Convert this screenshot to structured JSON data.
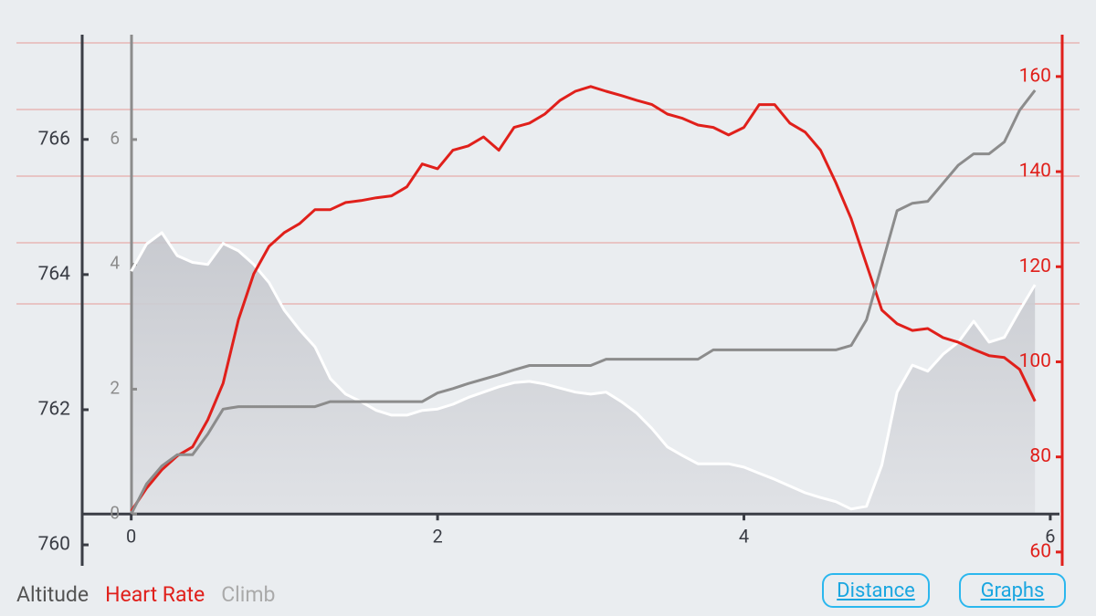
{
  "chart_data": {
    "type": "line",
    "x": [
      0,
      0.1,
      0.2,
      0.3,
      0.4,
      0.5,
      0.6,
      0.7,
      0.8,
      0.9,
      1,
      1.1,
      1.2,
      1.3,
      1.4,
      1.5,
      1.6,
      1.7,
      1.8,
      1.9,
      2,
      2.1,
      2.2,
      2.3,
      2.4,
      2.5,
      2.6,
      2.7,
      2.8,
      2.9,
      3,
      3.1,
      3.2,
      3.3,
      3.4,
      3.5,
      3.6,
      3.7,
      3.8,
      3.9,
      4,
      4.1,
      4.2,
      4.3,
      4.4,
      4.5,
      4.6,
      4.7,
      4.8,
      4.9,
      5,
      5.1,
      5.2,
      5.3,
      5.4,
      5.5,
      5.6,
      5.7,
      5.8,
      5.9
    ],
    "xlim": [
      -0.32,
      6.06
    ],
    "xticks": [
      0,
      2,
      4,
      6
    ],
    "ylim": [
      759.69,
      767.55
    ],
    "yticks": [
      760,
      762,
      764,
      766
    ],
    "y2lim": [
      57.1,
      168.8
    ],
    "y2ticks": [
      60,
      80,
      100,
      120,
      140,
      160
    ],
    "y3lim": [
      -0.83,
      7.68
    ],
    "y3ticks": [
      0,
      2,
      4,
      6
    ],
    "series": [
      {
        "name": "Altitude",
        "color": "#ffffff",
        "fill": "#c8cad0",
        "legend_color": "#555555",
        "values": [
          764.05,
          764.45,
          764.62,
          764.28,
          764.18,
          764.15,
          764.46,
          764.35,
          764.15,
          763.88,
          763.47,
          763.18,
          762.93,
          762.46,
          762.23,
          762.12,
          761.99,
          761.92,
          761.92,
          761.99,
          762.01,
          762.08,
          762.18,
          762.26,
          762.34,
          762.4,
          762.42,
          762.38,
          762.32,
          762.26,
          762.23,
          762.26,
          762.12,
          761.95,
          761.72,
          761.45,
          761.32,
          761.2,
          761.2,
          761.2,
          761.15,
          761.06,
          760.97,
          760.87,
          760.77,
          760.7,
          760.64,
          760.53,
          760.57,
          761.18,
          762.26,
          762.66,
          762.57,
          762.82,
          763.0,
          763.31,
          763.0,
          763.07,
          763.47,
          763.85
        ]
      },
      {
        "name": "Heart Rate",
        "color": "#e0201b",
        "legend_color": "#e0201b",
        "axis": "y2",
        "values": [
          68.6,
          73.4,
          77.3,
          80.2,
          82.1,
          87.8,
          95.5,
          108.9,
          118.5,
          124.3,
          127.2,
          129.1,
          132.0,
          132.0,
          133.5,
          133.9,
          134.5,
          134.9,
          136.8,
          141.6,
          140.6,
          144.5,
          145.4,
          147.3,
          144.5,
          149.3,
          150.2,
          152.1,
          155.0,
          156.9,
          157.9,
          156.9,
          156.0,
          155.0,
          154.1,
          152.1,
          151.2,
          149.8,
          149.3,
          147.7,
          149.3,
          154.1,
          154.1,
          150.2,
          148.3,
          144.5,
          137.7,
          130.1,
          120.5,
          110.9,
          108.0,
          106.6,
          107.0,
          105.1,
          104.1,
          102.6,
          101.3,
          100.9,
          98.4,
          91.7
        ]
      },
      {
        "name": "Climb",
        "color": "#8c8c8c",
        "legend_color": "#aaaaaa",
        "axis": "y3",
        "values": [
          0,
          0.48,
          0.77,
          0.95,
          0.95,
          1.28,
          1.68,
          1.72,
          1.72,
          1.72,
          1.72,
          1.72,
          1.72,
          1.8,
          1.8,
          1.8,
          1.8,
          1.8,
          1.8,
          1.8,
          1.94,
          2.01,
          2.09,
          2.16,
          2.23,
          2.31,
          2.38,
          2.38,
          2.38,
          2.38,
          2.38,
          2.48,
          2.48,
          2.48,
          2.48,
          2.48,
          2.48,
          2.48,
          2.63,
          2.63,
          2.63,
          2.63,
          2.63,
          2.63,
          2.63,
          2.63,
          2.63,
          2.7,
          3.11,
          3.99,
          4.86,
          4.98,
          5.01,
          5.3,
          5.59,
          5.77,
          5.77,
          5.96,
          6.47,
          6.79
        ]
      }
    ]
  },
  "buttons": [
    "Distance",
    "Graphs"
  ]
}
